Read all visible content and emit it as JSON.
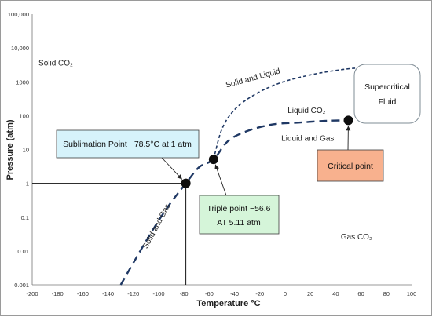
{
  "chart_data": {
    "type": "line",
    "title": "",
    "xlabel": "Temperature °C",
    "ylabel": "Pressure (atm)",
    "xlim": [
      -200,
      100
    ],
    "ylim": [
      0.001,
      10000
    ],
    "yscale": "log",
    "x_ticks": [
      "-200",
      "-180",
      "-160",
      "-140",
      "-120",
      "-100",
      "-80",
      "-60",
      "-40",
      "-20",
      "0",
      "20",
      "40",
      "60",
      "80",
      "100"
    ],
    "y_ticks": [
      "0.001",
      "0.01",
      "0.1",
      "1",
      "10",
      "100",
      "1000",
      "10,000",
      "100,000"
    ],
    "grid": false,
    "series": [
      {
        "style": "dashed",
        "color": "#1f3864",
        "points": [
          [
            -130,
            0.001
          ],
          [
            -118,
            0.006
          ],
          [
            -105,
            0.04
          ],
          [
            -92,
            0.22
          ],
          [
            -78.5,
            1
          ],
          [
            -68,
            3
          ],
          [
            -56.6,
            5.11
          ],
          [
            -45,
            18
          ],
          [
            -30,
            35
          ],
          [
            -10,
            55
          ],
          [
            10,
            62
          ],
          [
            31,
            70
          ],
          [
            50,
            72.8
          ]
        ]
      },
      {
        "style": "dotted",
        "color": "#1f3864",
        "points": [
          [
            -56.6,
            5.11
          ],
          [
            -50,
            40
          ],
          [
            -40,
            150
          ],
          [
            -25,
            400
          ],
          [
            -5,
            900
          ],
          [
            20,
            1600
          ],
          [
            45,
            2300
          ],
          [
            60,
            2600
          ]
        ]
      }
    ],
    "markers": [
      {
        "x": -78.5,
        "y": 1
      },
      {
        "x": -56.6,
        "y": 5.11
      },
      {
        "x": 50,
        "y": 72.8
      }
    ],
    "reference_lines": [
      {
        "from": [
          -200,
          1
        ],
        "to": [
          -78.5,
          1
        ]
      },
      {
        "from": [
          -78.5,
          1
        ],
        "to": [
          -78.5,
          0.001
        ]
      }
    ],
    "region_labels": [
      {
        "text": "Solid CO₂",
        "x": -195,
        "y": 3000
      },
      {
        "text": "Solid and Liquid",
        "x": -25,
        "y": 1100,
        "angle": -15
      },
      {
        "text": "Liquid CO₂",
        "x": 2,
        "y": 120
      },
      {
        "text": "Liquid and Gas",
        "x": -3,
        "y": 18
      },
      {
        "text": "Gas CO₂",
        "x": 44,
        "y": 0.022
      },
      {
        "text": "Solid and Gas",
        "x": -100,
        "y": 0.05,
        "angle": -62
      }
    ],
    "annotations": [
      {
        "text": "Sublimation Point −78.5°C at 1 atm",
        "fill": "#d6f3fb",
        "stroke": "#3d3d3d",
        "arrow_to": [
          -78.5,
          1
        ]
      },
      {
        "lines": [
          "Triple point −56.6",
          "AT 5.11 atm"
        ],
        "fill": "#d5f5d9",
        "stroke": "#3d3d3d",
        "arrow_to": [
          -56.6,
          5.11
        ]
      },
      {
        "text": "Critical point",
        "fill": "#f8b18e",
        "stroke": "#3d3d3d",
        "arrow_to": [
          50,
          72.8
        ]
      },
      {
        "lines": [
          "Supercritical",
          "Fluid"
        ],
        "fill": "#ffffff",
        "stroke": "#7f8c95"
      }
    ]
  }
}
